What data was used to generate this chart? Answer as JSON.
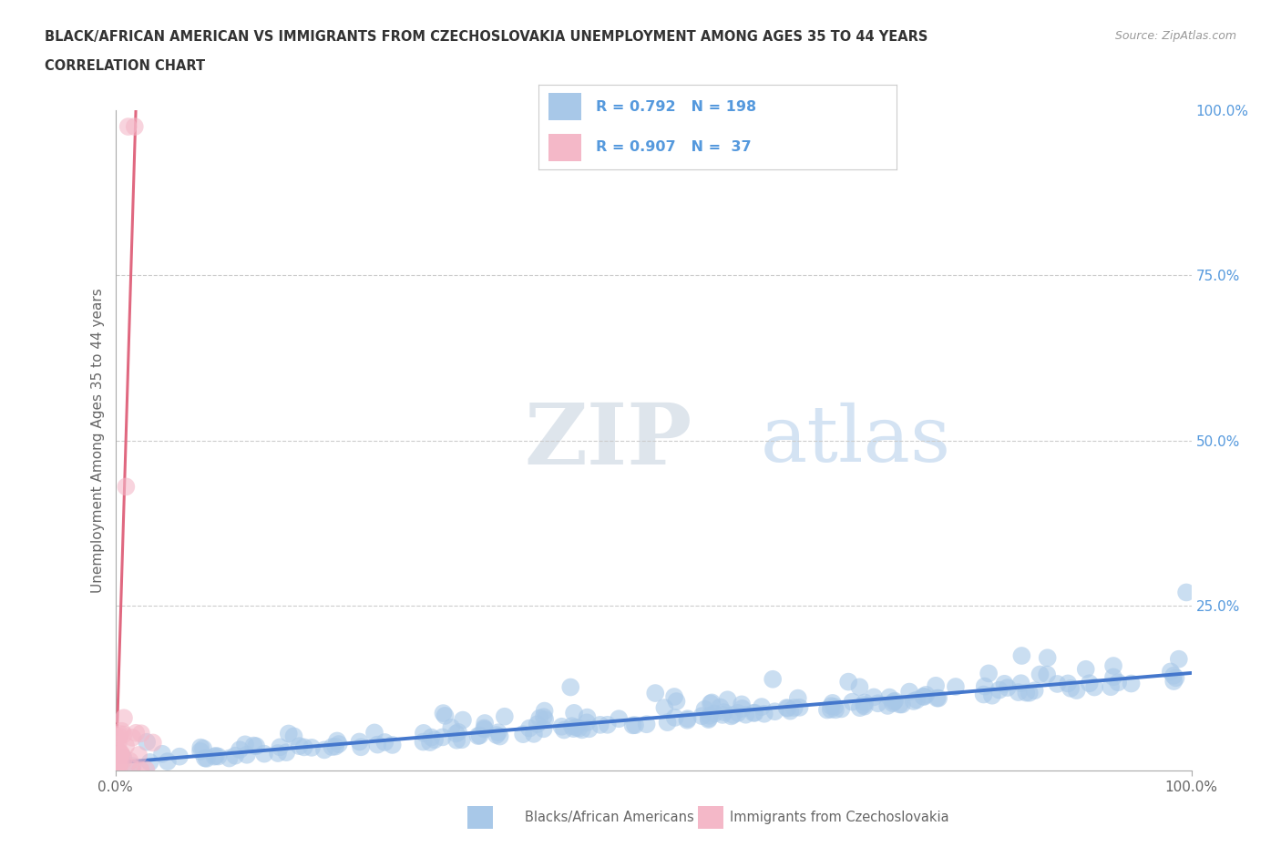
{
  "title_line1": "BLACK/AFRICAN AMERICAN VS IMMIGRANTS FROM CZECHOSLOVAKIA UNEMPLOYMENT AMONG AGES 35 TO 44 YEARS",
  "title_line2": "CORRELATION CHART",
  "source_text": "Source: ZipAtlas.com",
  "ylabel": "Unemployment Among Ages 35 to 44 years",
  "xlim": [
    0.0,
    1.0
  ],
  "ylim": [
    0.0,
    1.0
  ],
  "blue_R": 0.792,
  "blue_N": 198,
  "pink_R": 0.907,
  "pink_N": 37,
  "blue_color": "#a8c8e8",
  "pink_color": "#f4b8c8",
  "blue_line_color": "#4477cc",
  "pink_line_color": "#e06880",
  "legend_blue_label": "Blacks/African Americans",
  "legend_pink_label": "Immigrants from Czechoslovakia",
  "watermark_ZIP": "ZIP",
  "watermark_atlas": "atlas",
  "background_color": "#ffffff",
  "grid_color": "#cccccc",
  "title_color": "#333333",
  "axis_label_color": "#666666",
  "right_tick_color": "#5599dd"
}
